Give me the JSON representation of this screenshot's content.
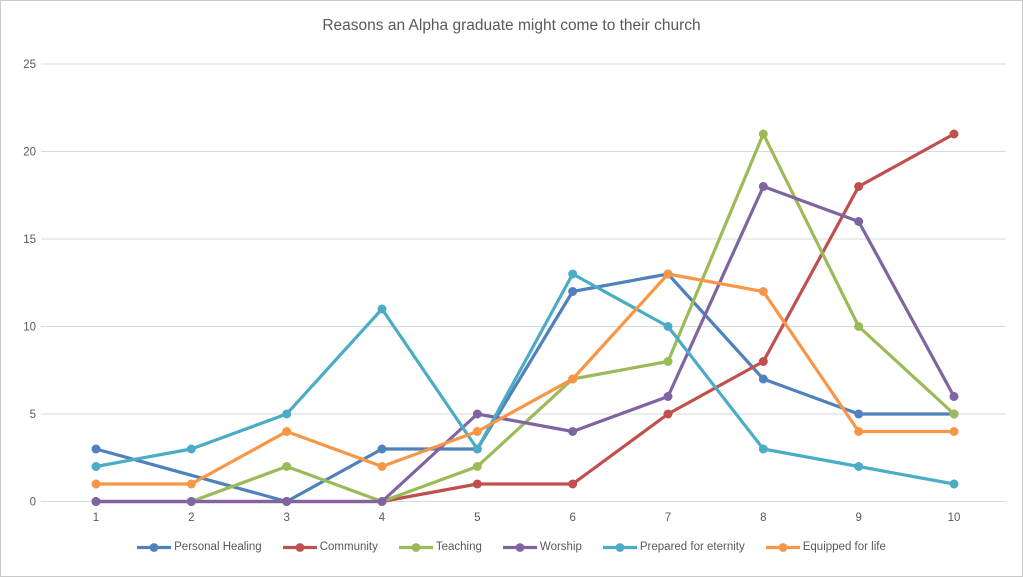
{
  "window": {
    "background": "#FFFFFF",
    "border_color": "#C9C9C9"
  },
  "chart_data": {
    "type": "line",
    "title": "Reasons an Alpha graduate might come to their church",
    "x": [
      1,
      2,
      3,
      4,
      5,
      6,
      7,
      8,
      9,
      10
    ],
    "series": [
      {
        "name": "Personal Healing",
        "color": "#4F81BD",
        "values": [
          3,
          null,
          0,
          3,
          3,
          12,
          13,
          7,
          5,
          5
        ]
      },
      {
        "name": "Community",
        "color": "#C0504D",
        "values": [
          0,
          0,
          0,
          0,
          1,
          1,
          5,
          8,
          18,
          21
        ]
      },
      {
        "name": "Teaching",
        "color": "#9BBB59",
        "values": [
          0,
          0,
          2,
          0,
          2,
          7,
          8,
          21,
          10,
          5
        ]
      },
      {
        "name": "Worship",
        "color": "#8064A2",
        "values": [
          0,
          0,
          0,
          0,
          5,
          4,
          6,
          18,
          16,
          6
        ]
      },
      {
        "name": "Prepared for eternity",
        "color": "#4BACC6",
        "values": [
          2,
          3,
          5,
          11,
          3,
          13,
          10,
          3,
          2,
          1
        ]
      },
      {
        "name": "Equipped for life",
        "color": "#F79646",
        "values": [
          1,
          1,
          4,
          2,
          4,
          7,
          13,
          12,
          4,
          4
        ]
      }
    ],
    "y_ticks": [
      0,
      5,
      10,
      15,
      20,
      25
    ],
    "ylim": [
      0,
      25
    ],
    "xlabel": "",
    "ylabel": "",
    "grid": true,
    "gridline_color": "#D9D9D9",
    "tick_label_color": "#595959",
    "title_color": "#595959",
    "legend_position": "bottom",
    "marker": "circle",
    "line_width": 3.2,
    "marker_radius": 4.5
  }
}
